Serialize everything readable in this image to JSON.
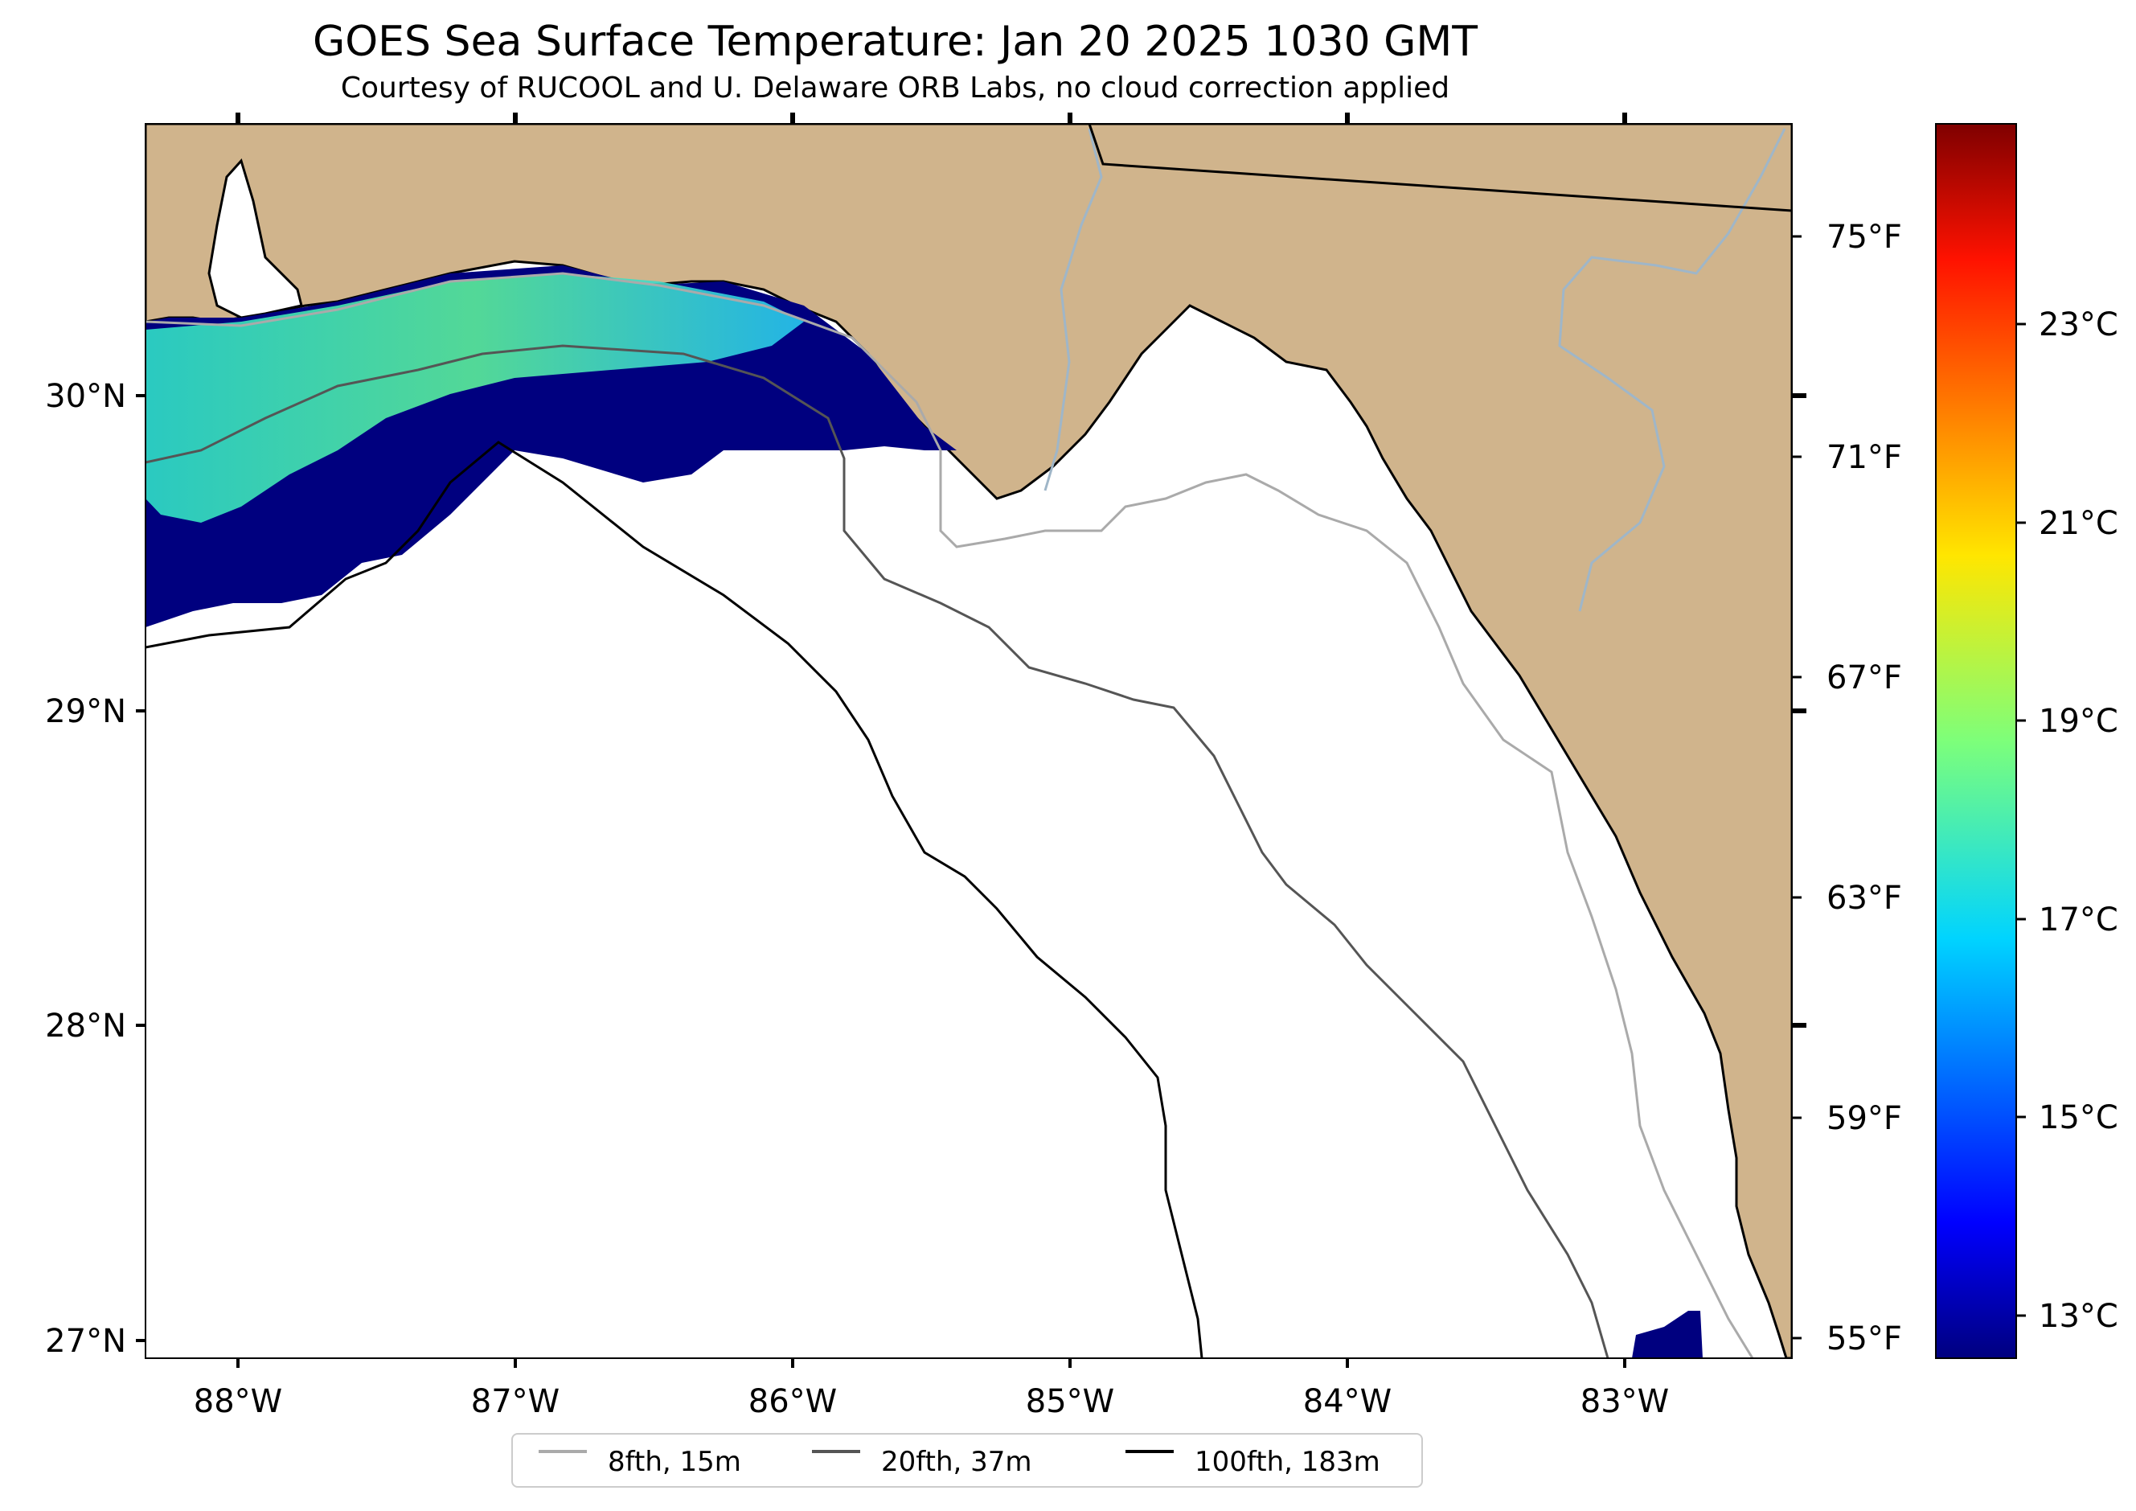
{
  "title": "GOES Sea Surface Temperature: Jan 20 2025 1030 GMT",
  "subtitle": "Courtesy of RUCOOL and U. Delaware ORB Labs, no cloud correction applied",
  "map": {
    "lon_labels": [
      "88°W",
      "87°W",
      "86°W",
      "85°W",
      "84°W",
      "83°W"
    ],
    "lat_labels": [
      "30°N",
      "29°N",
      "28°N",
      "27°N"
    ],
    "temp_f_labels": [
      "75°F",
      "71°F",
      "67°F",
      "63°F",
      "59°F",
      "55°F"
    ],
    "land_color": "#d0b48c",
    "water_color": "#ffffff"
  },
  "colorbar": {
    "labels": [
      "23°C",
      "21°C",
      "19°C",
      "17°C",
      "15°C",
      "13°C"
    ],
    "colormap": "jet"
  },
  "legend": {
    "items": [
      {
        "label": "8fth, 15m",
        "color": "#aaaaaa"
      },
      {
        "label": "20fth, 37m",
        "color": "#555555"
      },
      {
        "label": "100fth, 183m",
        "color": "#000000"
      }
    ]
  }
}
